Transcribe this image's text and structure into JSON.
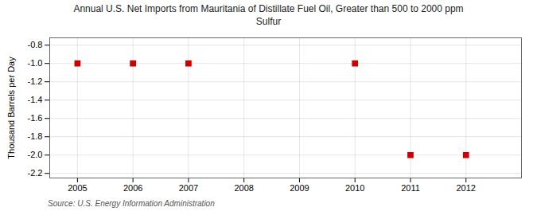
{
  "chart_data": {
    "type": "scatter",
    "title": "Annual U.S. Net Imports from Mauritania of Distillate Fuel Oil, Greater than 500 to 2000 ppm\nSulfur",
    "y_label": "Thousand Barrels per Day",
    "source": "Source: U.S. Energy Information Administration",
    "x": [
      2005,
      2006,
      2007,
      2010,
      2011,
      2012
    ],
    "values": [
      -1.0,
      -1.0,
      -1.0,
      -1.0,
      -2.0,
      -2.0
    ],
    "color": "#cc0000",
    "marker": "square",
    "xlim": [
      2004.5,
      2013.0
    ],
    "ylim": [
      -2.25,
      -0.72
    ],
    "xticks": [
      2005,
      2006,
      2007,
      2008,
      2009,
      2010,
      2011,
      2012
    ],
    "yticks": [
      -2.2,
      {
        "value": -2.0,
        "label": "-2.0"
      },
      -1.8,
      -1.6,
      -1.4,
      -1.2,
      {
        "value": -1.0,
        "label": "-1.0"
      },
      -0.8
    ],
    "grid": true
  }
}
